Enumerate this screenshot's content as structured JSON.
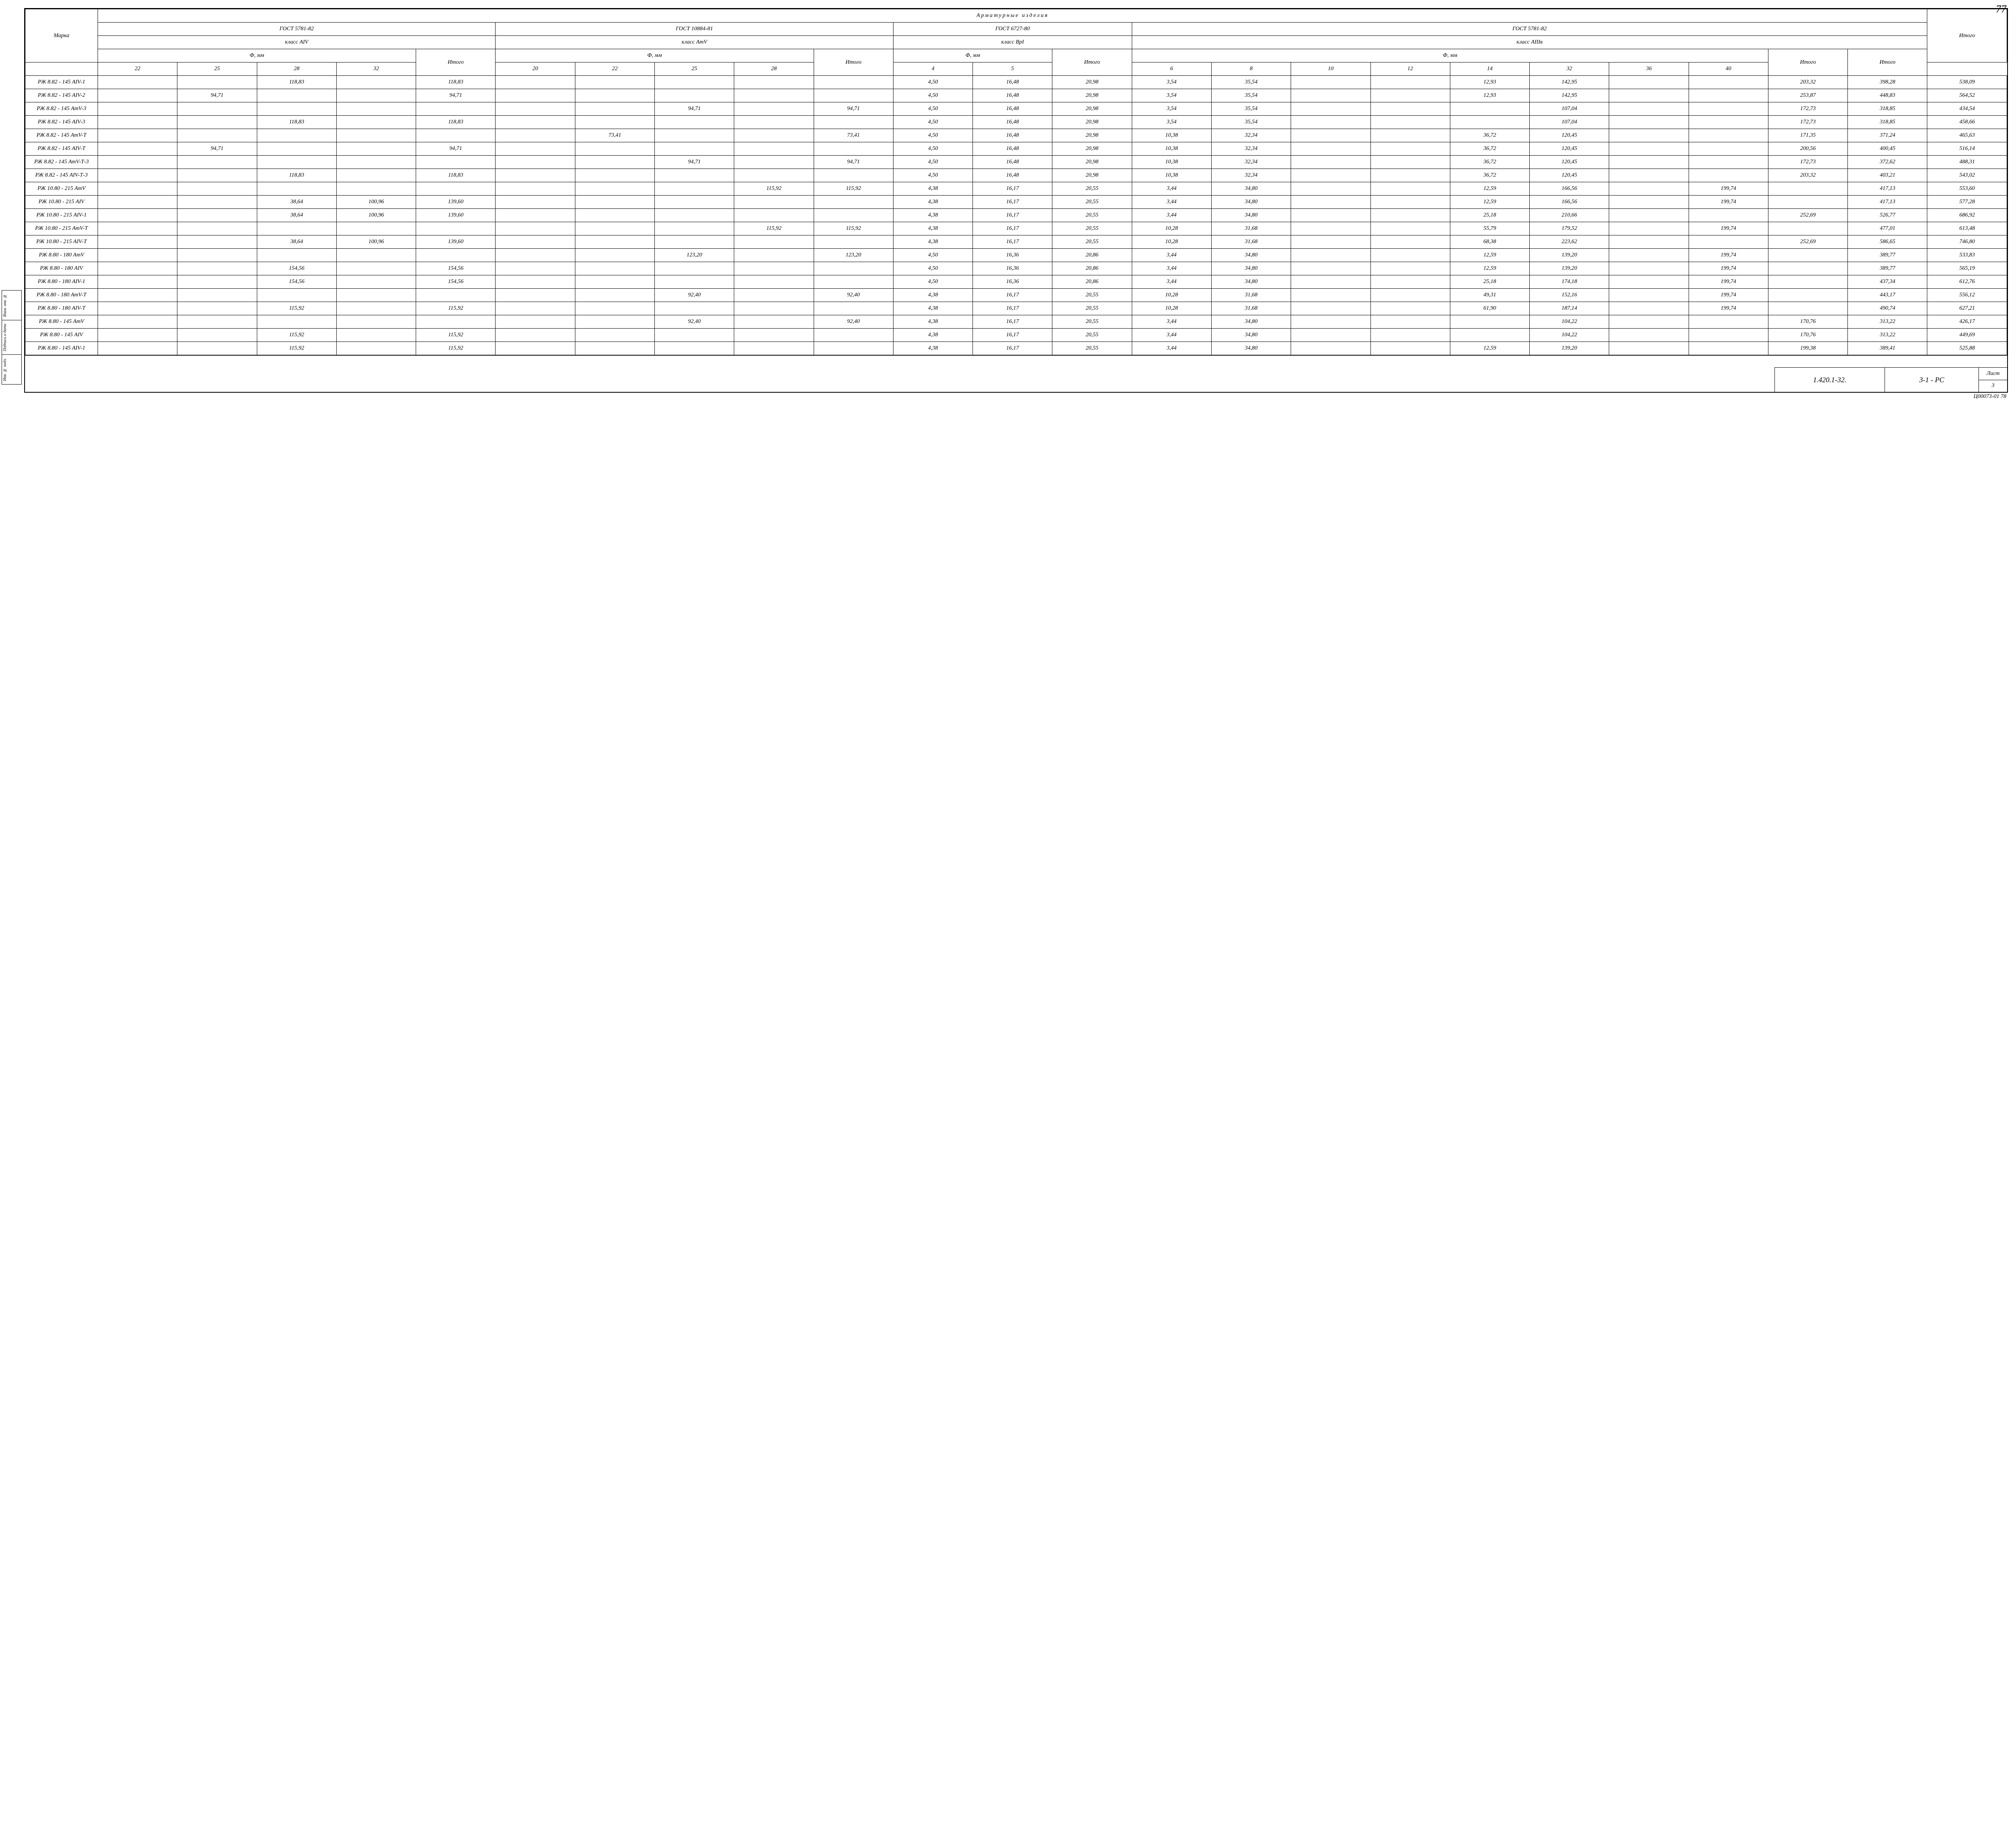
{
  "page_number_top": "77",
  "bottom_code": "Ц00073-01 78",
  "title_block": {
    "left": "1.420.1-32.",
    "mid": "3-1 - РС",
    "sheet_label": "Лист",
    "sheet_num": "3"
  },
  "side_labels": [
    "Взам. инв. №",
    "Подпись и дата",
    "Инв. № подл."
  ],
  "header": {
    "marka": "Марка",
    "band_title": "Арматурные   изделия",
    "itogo": "Итого",
    "groups": [
      {
        "gost": "ГОСТ 5781-82",
        "klass": "класс AIV",
        "phi": "Ф, мм",
        "cols": [
          "22",
          "25",
          "28",
          "32"
        ],
        "itogo": "Итого"
      },
      {
        "gost": "ГОСТ 10884-81",
        "klass": "класс АтV",
        "phi": "Ф, мм",
        "cols": [
          "20",
          "22",
          "25",
          "28"
        ],
        "itogo": "Итого"
      },
      {
        "gost": "ГОСТ 6727-80",
        "klass": "класс ВрI",
        "phi": "Ф, мм",
        "cols": [
          "4",
          "5"
        ],
        "itogo": "Итого"
      },
      {
        "gost": "ГОСТ 5781-82",
        "klass": "класс АIIIв",
        "phi": "Ф, мм",
        "cols": [
          "6",
          "8",
          "10",
          "12",
          "14",
          "32",
          "36",
          "40"
        ],
        "itogo": "Итого"
      }
    ]
  },
  "rows": [
    {
      "m": "РЖ 8.82 - 145 АIV-1",
      "g1": [
        "",
        "",
        "118,83",
        ""
      ],
      "g1i": "118,83",
      "g2": [
        "",
        "",
        "",
        ""
      ],
      "g2i": "",
      "g3": [
        "4,50",
        "16,48"
      ],
      "g3i": "20,98",
      "g4": [
        "3,54",
        "35,54",
        "",
        "",
        "12,93",
        "142,95",
        "",
        ""
      ],
      "g4i": "203,32",
      "sub": "398,28",
      "tot": "538,09"
    },
    {
      "m": "РЖ 8.82 - 145 АIV-2",
      "g1": [
        "",
        "94,71",
        "",
        ""
      ],
      "g1i": "94,71",
      "g2": [
        "",
        "",
        "",
        ""
      ],
      "g2i": "",
      "g3": [
        "4,50",
        "16,48"
      ],
      "g3i": "20,98",
      "g4": [
        "3,54",
        "35,54",
        "",
        "",
        "12,93",
        "142,95",
        "",
        ""
      ],
      "g4i": "253,87",
      "sub": "448,83",
      "tot": "564,52"
    },
    {
      "m": "РЖ 8.82 - 145 АтV-3",
      "g1": [
        "",
        "",
        "",
        ""
      ],
      "g1i": "",
      "g2": [
        "",
        "",
        "94,71",
        ""
      ],
      "g2i": "94,71",
      "g3": [
        "4,50",
        "16,48"
      ],
      "g3i": "20,98",
      "g4": [
        "3,54",
        "35,54",
        "",
        "",
        "",
        "107,04",
        "",
        ""
      ],
      "g4i": "172,73",
      "sub": "318,85",
      "tot": "434,54"
    },
    {
      "m": "РЖ 8.82 - 145 АIV-3",
      "g1": [
        "",
        "",
        "118,83",
        ""
      ],
      "g1i": "118,83",
      "g2": [
        "",
        "",
        "",
        ""
      ],
      "g2i": "",
      "g3": [
        "4,50",
        "16,48"
      ],
      "g3i": "20,98",
      "g4": [
        "3,54",
        "35,54",
        "",
        "",
        "",
        "107,04",
        "",
        ""
      ],
      "g4i": "172,73",
      "sub": "318,85",
      "tot": "458,66"
    },
    {
      "m": "РЖ 8.82 - 145 АтV-Т",
      "g1": [
        "",
        "",
        "",
        ""
      ],
      "g1i": "",
      "g2": [
        "",
        "73,41",
        "",
        ""
      ],
      "g2i": "73,41",
      "g3": [
        "4,50",
        "16,48"
      ],
      "g3i": "20,98",
      "g4": [
        "10,38",
        "32,34",
        "",
        "",
        "36,72",
        "120,45",
        "",
        ""
      ],
      "g4i": "171,35",
      "sub": "371,24",
      "tot": "465,63"
    },
    {
      "m": "РЖ 8.82 - 145 АIV-Т",
      "g1": [
        "",
        "94,71",
        "",
        ""
      ],
      "g1i": "94,71",
      "g2": [
        "",
        "",
        "",
        ""
      ],
      "g2i": "",
      "g3": [
        "4,50",
        "16,48"
      ],
      "g3i": "20,98",
      "g4": [
        "10,38",
        "32,34",
        "",
        "",
        "36,72",
        "120,45",
        "",
        ""
      ],
      "g4i": "200,56",
      "sub": "400,45",
      "tot": "516,14"
    },
    {
      "m": "РЖ 8.82 - 145 АтV-Т-3",
      "g1": [
        "",
        "",
        "",
        ""
      ],
      "g1i": "",
      "g2": [
        "",
        "",
        "94,71",
        ""
      ],
      "g2i": "94,71",
      "g3": [
        "4,50",
        "16,48"
      ],
      "g3i": "20,98",
      "g4": [
        "10,38",
        "32,34",
        "",
        "",
        "36,72",
        "120,45",
        "",
        ""
      ],
      "g4i": "172,73",
      "sub": "372,62",
      "tot": "488,31"
    },
    {
      "m": "РЖ 8.82 - 145 АIV-Т-3",
      "g1": [
        "",
        "",
        "118,83",
        ""
      ],
      "g1i": "118,83",
      "g2": [
        "",
        "",
        "",
        ""
      ],
      "g2i": "",
      "g3": [
        "4,50",
        "16,48"
      ],
      "g3i": "20,98",
      "g4": [
        "10,38",
        "32,34",
        "",
        "",
        "36,72",
        "120,45",
        "",
        ""
      ],
      "g4i": "203,32",
      "sub": "403,21",
      "tot": "543,02"
    },
    {
      "m": "РЖ 10.80 - 215 АтV",
      "g1": [
        "",
        "",
        "",
        ""
      ],
      "g1i": "",
      "g2": [
        "",
        "",
        "",
        "115,92"
      ],
      "g2i": "115,92",
      "g3": [
        "4,38",
        "16,17"
      ],
      "g3i": "20,55",
      "g4": [
        "3,44",
        "34,80",
        "",
        "",
        "12,59",
        "166,56",
        "",
        "199,74"
      ],
      "g4i": "",
      "sub": "417,13",
      "tot": "553,60"
    },
    {
      "m": "РЖ 10.80 - 215 АIV",
      "g1": [
        "",
        "",
        "38,64",
        "100,96"
      ],
      "g1i": "139,60",
      "g2": [
        "",
        "",
        "",
        ""
      ],
      "g2i": "",
      "g3": [
        "4,38",
        "16,17"
      ],
      "g3i": "20,55",
      "g4": [
        "3,44",
        "34,80",
        "",
        "",
        "12,59",
        "166,56",
        "",
        "199,74"
      ],
      "g4i": "",
      "sub": "417,13",
      "tot": "577,28"
    },
    {
      "m": "РЖ 10.80 - 215 АIV-1",
      "g1": [
        "",
        "",
        "38,64",
        "100,96"
      ],
      "g1i": "139,60",
      "g2": [
        "",
        "",
        "",
        ""
      ],
      "g2i": "",
      "g3": [
        "4,38",
        "16,17"
      ],
      "g3i": "20,55",
      "g4": [
        "3,44",
        "34,80",
        "",
        "",
        "25,18",
        "210,66",
        "",
        ""
      ],
      "g4i": "252,69",
      "sub": "526,77",
      "tot": "686,92"
    },
    {
      "m": "РЖ 10.80 - 215 АтV-Т",
      "g1": [
        "",
        "",
        "",
        ""
      ],
      "g1i": "",
      "g2": [
        "",
        "",
        "",
        "115,92"
      ],
      "g2i": "115,92",
      "g3": [
        "4,38",
        "16,17"
      ],
      "g3i": "20,55",
      "g4": [
        "10,28",
        "31,68",
        "",
        "",
        "55,79",
        "179,52",
        "",
        "199,74"
      ],
      "g4i": "",
      "sub": "477,01",
      "tot": "613,48"
    },
    {
      "m": "РЖ 10.80 - 215 АIV-Т",
      "g1": [
        "",
        "",
        "38,64",
        "100,96"
      ],
      "g1i": "139,60",
      "g2": [
        "",
        "",
        "",
        ""
      ],
      "g2i": "",
      "g3": [
        "4,38",
        "16,17"
      ],
      "g3i": "20,55",
      "g4": [
        "10,28",
        "31,68",
        "",
        "",
        "68,38",
        "223,62",
        "",
        ""
      ],
      "g4i": "252,69",
      "sub": "586,65",
      "tot": "746,80"
    },
    {
      "m": "РЖ 8.80 - 180 АтV",
      "g1": [
        "",
        "",
        "",
        ""
      ],
      "g1i": "",
      "g2": [
        "",
        "",
        "123,20",
        ""
      ],
      "g2i": "123,20",
      "g3": [
        "4,50",
        "16,36"
      ],
      "g3i": "20,86",
      "g4": [
        "3,44",
        "34,80",
        "",
        "",
        "12,59",
        "139,20",
        "",
        "199,74"
      ],
      "g4i": "",
      "sub": "389,77",
      "tot": "533,83"
    },
    {
      "m": "РЖ 8.80 - 180 АIV",
      "g1": [
        "",
        "",
        "154,56",
        ""
      ],
      "g1i": "154,56",
      "g2": [
        "",
        "",
        "",
        ""
      ],
      "g2i": "",
      "g3": [
        "4,50",
        "16,36"
      ],
      "g3i": "20,86",
      "g4": [
        "3,44",
        "34,80",
        "",
        "",
        "12,59",
        "139,20",
        "",
        "199,74"
      ],
      "g4i": "",
      "sub": "389,77",
      "tot": "565,19"
    },
    {
      "m": "РЖ 8.80 - 180 АIV-1",
      "g1": [
        "",
        "",
        "154,56",
        ""
      ],
      "g1i": "154,56",
      "g2": [
        "",
        "",
        "",
        ""
      ],
      "g2i": "",
      "g3": [
        "4,50",
        "16,36"
      ],
      "g3i": "20,86",
      "g4": [
        "3,44",
        "34,80",
        "",
        "",
        "25,18",
        "174,18",
        "",
        "199,74"
      ],
      "g4i": "",
      "sub": "437,34",
      "tot": "612,76"
    },
    {
      "m": "РЖ 8.80 - 180 АтV-Т",
      "g1": [
        "",
        "",
        "",
        ""
      ],
      "g1i": "",
      "g2": [
        "",
        "",
        "92,40",
        ""
      ],
      "g2i": "92,40",
      "g3": [
        "4,38",
        "16,17"
      ],
      "g3i": "20,55",
      "g4": [
        "10,28",
        "31,68",
        "",
        "",
        "49,31",
        "152,16",
        "",
        "199,74"
      ],
      "g4i": "",
      "sub": "443,17",
      "tot": "556,12"
    },
    {
      "m": "РЖ 8.80 - 180 АIV-Т",
      "g1": [
        "",
        "",
        "115,92",
        ""
      ],
      "g1i": "115,92",
      "g2": [
        "",
        "",
        "",
        ""
      ],
      "g2i": "",
      "g3": [
        "4,38",
        "16,17"
      ],
      "g3i": "20,55",
      "g4": [
        "10,28",
        "31,68",
        "",
        "",
        "61,90",
        "187,14",
        "",
        "199,74"
      ],
      "g4i": "",
      "sub": "490,74",
      "tot": "627,21"
    },
    {
      "m": "РЖ 8.80 - 145 АтV",
      "g1": [
        "",
        "",
        "",
        ""
      ],
      "g1i": "",
      "g2": [
        "",
        "",
        "92,40",
        ""
      ],
      "g2i": "92,40",
      "g3": [
        "4,38",
        "16,17"
      ],
      "g3i": "20,55",
      "g4": [
        "3,44",
        "34,80",
        "",
        "",
        "",
        "104,22",
        "",
        ""
      ],
      "g4i": "170,76",
      "sub": "313,22",
      "tot": "426,17"
    },
    {
      "m": "РЖ 8.80 - 145 АIV",
      "g1": [
        "",
        "",
        "115,92",
        ""
      ],
      "g1i": "115,92",
      "g2": [
        "",
        "",
        "",
        ""
      ],
      "g2i": "",
      "g3": [
        "4,38",
        "16,17"
      ],
      "g3i": "20,55",
      "g4": [
        "3,44",
        "34,80",
        "",
        "",
        "",
        "104,22",
        "",
        ""
      ],
      "g4i": "170,76",
      "sub": "313,22",
      "tot": "449,69"
    },
    {
      "m": "РЖ 8.80 - 145 АIV-1",
      "g1": [
        "",
        "",
        "115,92",
        ""
      ],
      "g1i": "115,92",
      "g2": [
        "",
        "",
        "",
        ""
      ],
      "g2i": "",
      "g3": [
        "4,38",
        "16,17"
      ],
      "g3i": "20,55",
      "g4": [
        "3,44",
        "34,80",
        "",
        "",
        "12,59",
        "139,20",
        "",
        ""
      ],
      "g4i": "199,38",
      "sub": "389,41",
      "tot": "525,88"
    }
  ]
}
